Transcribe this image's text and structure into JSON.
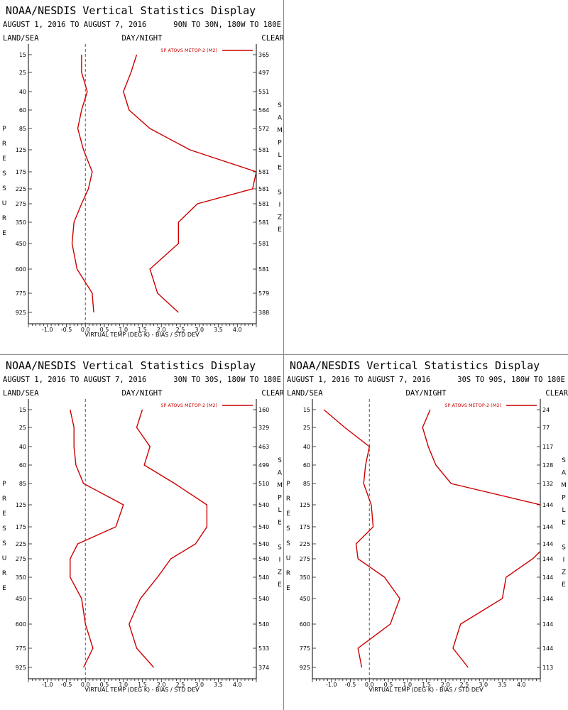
{
  "colors": {
    "line": "#cc0000",
    "axis": "#000000",
    "zero": "#555555"
  },
  "chart_data": [
    {
      "type": "line",
      "title": "NOAA/NESDIS Vertical Statistics Display",
      "date_range": "AUGUST 1, 2016 TO AUGUST 7, 2016",
      "region": "90N TO 30N, 180W TO 180E",
      "header_left": "LAND/SEA",
      "header_center": "DAY/NIGHT",
      "header_right": "CLEAR",
      "xlabel": "VIRTUAL TEMP (DEG K) - BIAS / STD DEV",
      "ylabel": "PRESSURE",
      "y2label": "SAMPLE SIZE",
      "xlim": [
        -1.5,
        4.5
      ],
      "x_tick_labels": [
        "-1.0",
        "-0.5",
        "0.0",
        "0.5",
        "1.0",
        "1.5",
        "2.0",
        "2.5",
        "3.0",
        "3.5",
        "4.0"
      ],
      "pressure_levels": [
        "15",
        "25",
        "40",
        "60",
        "85",
        "125",
        "175",
        "225",
        "275",
        "350",
        "450",
        "600",
        "775",
        "925"
      ],
      "sample_size": [
        "365",
        "497",
        "551",
        "564",
        "572",
        "581",
        "581",
        "581",
        "581",
        "581",
        "581",
        "581",
        "579",
        "388"
      ],
      "series": [
        {
          "name": "SP ATOVS METOP-2 (M2)",
          "stat": "bias",
          "values": [
            -0.1,
            -0.1,
            0.05,
            -0.1,
            -0.2,
            -0.05,
            0.18,
            0.08,
            -0.1,
            -0.3,
            -0.35,
            -0.22,
            0.18,
            0.22
          ]
        },
        {
          "name": "SP ATOVS METOP-2 (M2)",
          "stat": "std_dev",
          "values": [
            1.35,
            1.2,
            1.0,
            1.15,
            1.7,
            2.75,
            4.5,
            4.4,
            2.95,
            2.45,
            2.45,
            1.7,
            1.9,
            2.45
          ]
        }
      ]
    },
    {
      "type": "line",
      "title": "NOAA/NESDIS Vertical Statistics Display",
      "date_range": "AUGUST 1, 2016 TO AUGUST 7, 2016",
      "region": "30N TO 30S, 180W TO 180E",
      "header_left": "LAND/SEA",
      "header_center": "DAY/NIGHT",
      "header_right": "CLEAR",
      "xlabel": "VIRTUAL TEMP (DEG K) - BIAS / STD DEV",
      "ylabel": "PRESSURE",
      "y2label": "SAMPLE SIZE",
      "xlim": [
        -1.5,
        4.5
      ],
      "x_tick_labels": [
        "-1.0",
        "-0.5",
        "0.0",
        "0.5",
        "1.0",
        "1.5",
        "2.0",
        "2.5",
        "3.0",
        "3.5",
        "4.0"
      ],
      "pressure_levels": [
        "15",
        "25",
        "40",
        "60",
        "85",
        "125",
        "175",
        "225",
        "275",
        "350",
        "450",
        "600",
        "775",
        "925"
      ],
      "sample_size": [
        "160",
        "329",
        "463",
        "499",
        "510",
        "540",
        "540",
        "540",
        "540",
        "540",
        "540",
        "540",
        "533",
        "374"
      ],
      "series": [
        {
          "name": "SP ATOVS METOP-2 (M2)",
          "stat": "bias",
          "values": [
            -0.4,
            -0.3,
            -0.3,
            -0.25,
            -0.05,
            1.0,
            0.8,
            -0.2,
            -0.4,
            -0.4,
            -0.1,
            0.0,
            0.2,
            -0.05
          ]
        },
        {
          "name": "SP ATOVS METOP-2 (M2)",
          "stat": "std_dev",
          "values": [
            1.5,
            1.35,
            1.7,
            1.55,
            2.35,
            3.2,
            3.2,
            2.9,
            2.25,
            1.9,
            1.45,
            1.15,
            1.35,
            1.8
          ]
        }
      ]
    },
    {
      "type": "line",
      "title": "NOAA/NESDIS Vertical Statistics Display",
      "date_range": "AUGUST 1, 2016 TO AUGUST 7, 2016",
      "region": "30S TO 90S, 180W TO 180E",
      "header_left": "LAND/SEA",
      "header_center": "DAY/NIGHT",
      "header_right": "CLEAR",
      "xlabel": "VIRTUAL TEMP (DEG K) - BIAS / STD DEV",
      "ylabel": "PRESSURE",
      "y2label": "SAMPLE SIZE",
      "xlim": [
        -1.5,
        4.5
      ],
      "x_tick_labels": [
        "-1.0",
        "-0.5",
        "0.0",
        "0.5",
        "1.0",
        "1.5",
        "2.0",
        "2.5",
        "3.0",
        "3.5",
        "4.0"
      ],
      "pressure_levels": [
        "15",
        "25",
        "40",
        "60",
        "85",
        "125",
        "175",
        "225",
        "275",
        "350",
        "450",
        "600",
        "775",
        "925"
      ],
      "sample_size": [
        "24",
        "77",
        "117",
        "128",
        "132",
        "144",
        "144",
        "144",
        "144",
        "144",
        "144",
        "144",
        "144",
        "113"
      ],
      "series": [
        {
          "name": "SP ATOVS METOP-2 (M2)",
          "stat": "bias",
          "values": [
            -1.2,
            -0.65,
            0.0,
            -0.1,
            -0.15,
            0.05,
            0.1,
            -0.35,
            -0.3,
            0.4,
            0.8,
            0.55,
            -0.3,
            -0.2
          ]
        },
        {
          "name": "SP ATOVS METOP-2 (M2)",
          "stat": "std_dev",
          "values": [
            1.6,
            1.4,
            1.55,
            1.75,
            2.15,
            4.5,
            4.7,
            4.7,
            4.3,
            3.6,
            3.5,
            2.4,
            2.2,
            2.6
          ]
        }
      ]
    }
  ]
}
